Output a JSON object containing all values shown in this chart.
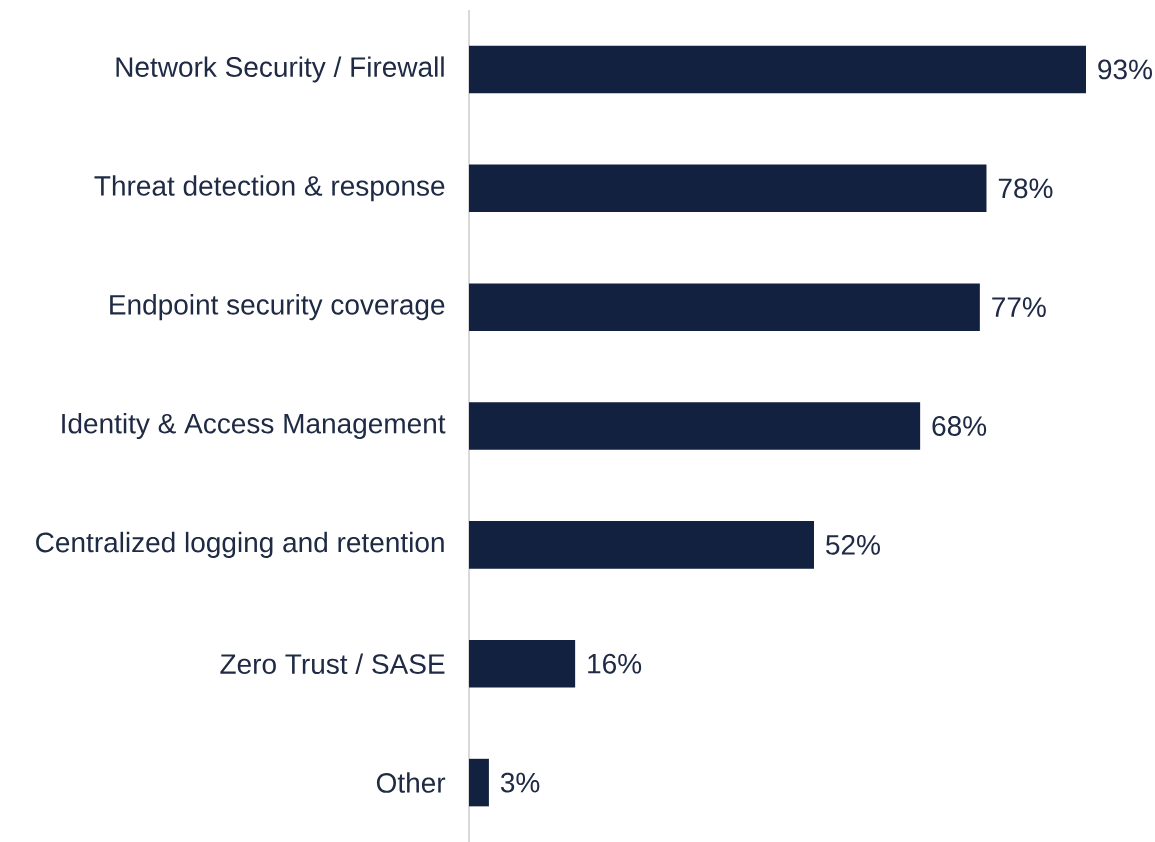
{
  "chart_data": {
    "type": "bar",
    "orientation": "horizontal",
    "categories": [
      "Network Security / Firewall",
      "Threat detection & response",
      "Endpoint security coverage",
      "Identity & Access Management",
      "Centralized logging and retention",
      "Zero Trust / SASE",
      "Other"
    ],
    "values": [
      93,
      78,
      77,
      68,
      52,
      16,
      3
    ],
    "value_labels": [
      "93%",
      "78%",
      "77%",
      "68%",
      "52%",
      "16%",
      "3%"
    ],
    "color": "#12213f"
  }
}
